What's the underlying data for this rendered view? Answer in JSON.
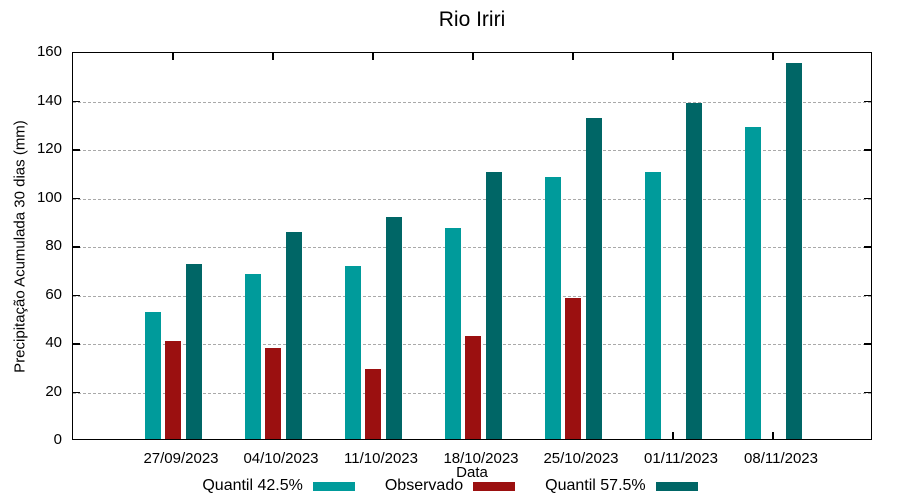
{
  "chart_data": {
    "type": "bar",
    "title": "Rio Iriri",
    "xlabel": "Data",
    "ylabel": "Precipitação Acumulada 30 dias (mm)",
    "ylim": [
      0,
      160
    ],
    "ytick_step": 20,
    "grid": "horizontal dashed gridlines at each y tick, none vertical",
    "legend_position": "bottom-center, label text followed by color swatch",
    "axis_color": "#000000",
    "grid_color": "#a9a9a9",
    "background_color": "#ffffff",
    "categories": [
      "27/09/2023",
      "04/10/2023",
      "11/10/2023",
      "18/10/2023",
      "25/10/2023",
      "01/11/2023",
      "08/11/2023"
    ],
    "series": [
      {
        "name": "Quantil 42.5%",
        "color": "#009b9b",
        "values": [
          52.5,
          68,
          71.5,
          87,
          108,
          110,
          128.5
        ]
      },
      {
        "name": "Observado",
        "color": "#9b1010",
        "values": [
          40.5,
          37.5,
          29,
          42.5,
          58,
          null,
          null
        ]
      },
      {
        "name": "Quantil 57.5%",
        "color": "#006666",
        "values": [
          72,
          85.5,
          91.5,
          110,
          132.5,
          138.5,
          155
        ]
      }
    ]
  }
}
